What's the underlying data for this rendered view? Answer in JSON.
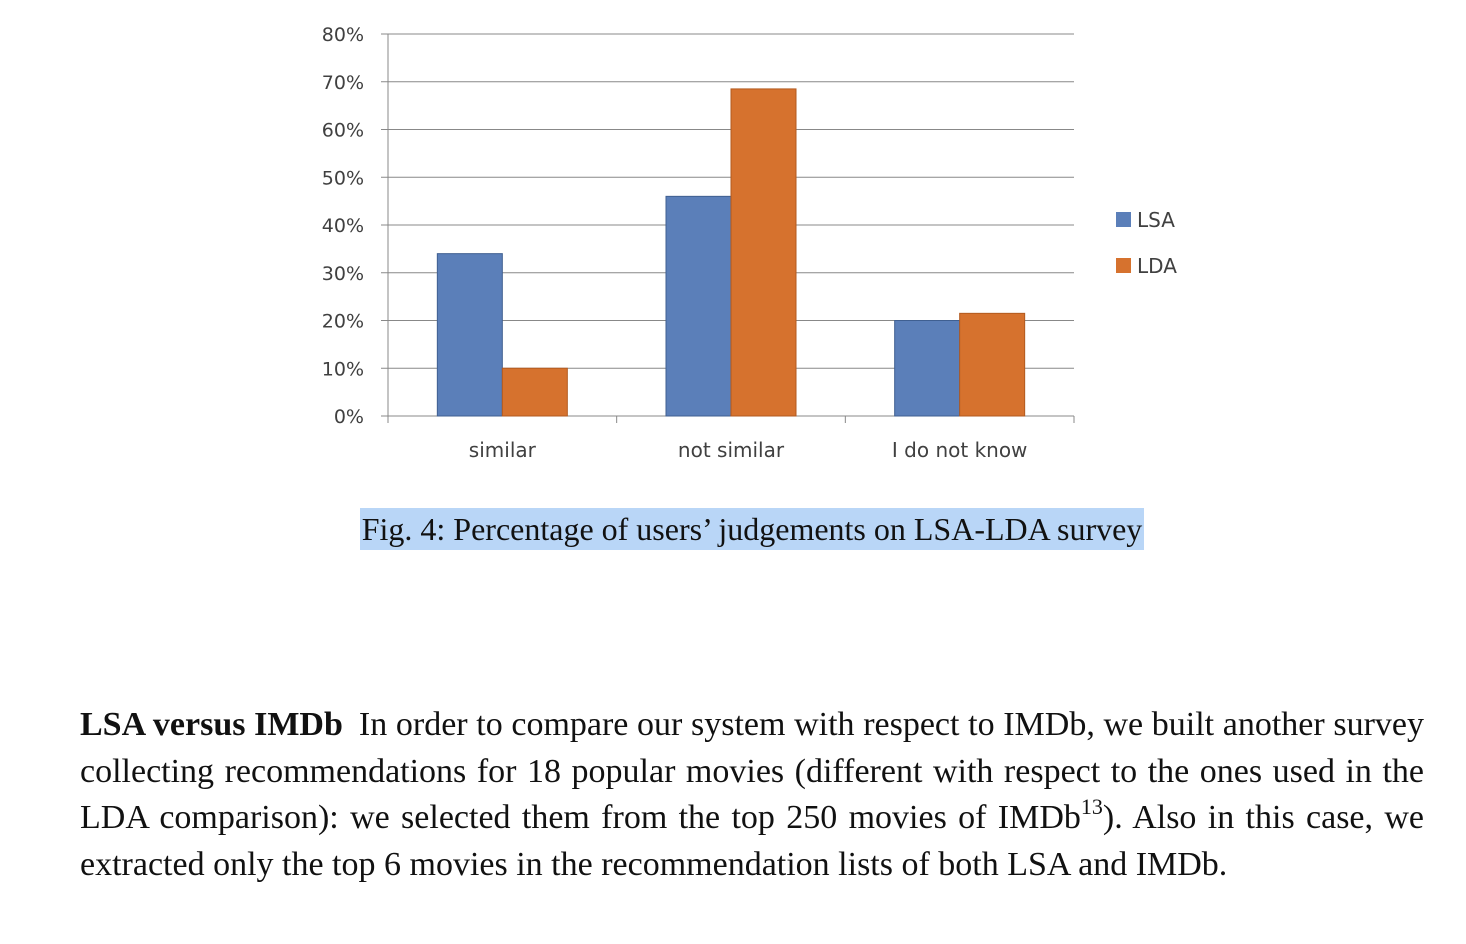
{
  "chart_data": {
    "type": "bar",
    "categories": [
      "similar",
      "not similar",
      "I do not know"
    ],
    "series": [
      {
        "name": "LSA",
        "color": "#5b7fb9",
        "values": [
          34,
          46,
          20
        ]
      },
      {
        "name": "LDA",
        "color": "#d6722e",
        "values": [
          10,
          68.5,
          21.5
        ]
      }
    ],
    "yticks": [
      "0%",
      "10%",
      "20%",
      "30%",
      "40%",
      "50%",
      "60%",
      "70%",
      "80%"
    ],
    "ylim": [
      0,
      80
    ],
    "grid": true,
    "legend_position": "right"
  },
  "caption": "Fig. 4: Percentage of users’ judgements on LSA-LDA survey",
  "paragraph": {
    "heading": "LSA versus IMDb",
    "body_before_sup": "In order to compare our system with respect to IMDb, we built another survey collecting recommendations for 18 popular movies (different with respect to the ones used in the LDA comparison): we selected them from the top 250 movies of IMDb",
    "footnote_mark": "13",
    "body_after_sup": "). Also in this case, we extracted only the top 6 movies in the recommendation lists of both LSA and IMDb."
  }
}
